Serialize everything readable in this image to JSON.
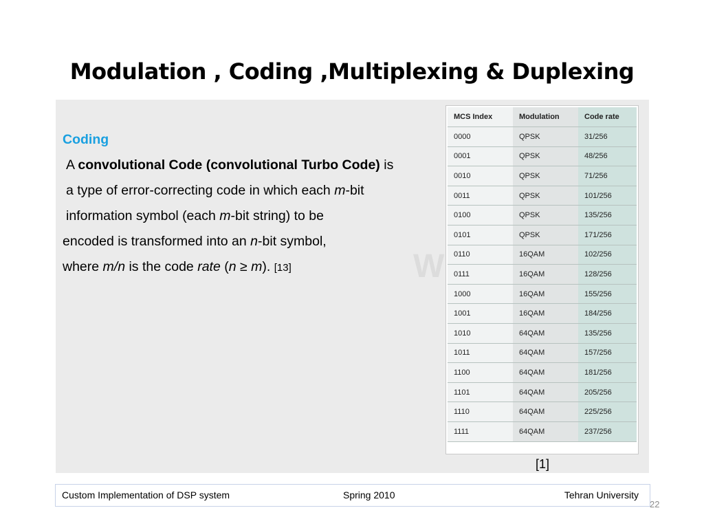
{
  "slide": {
    "title": "Modulation , Coding ,Multiplexing & Duplexing",
    "page_number": "22",
    "citation": "[1]"
  },
  "body": {
    "heading": "Coding",
    "line1_a": "A ",
    "line1_bold": "convolutional Code (convolutional Turbo Code)",
    "line1_b": " is",
    "line2_a": "a type of error-correcting code in which each ",
    "line2_m": "m",
    "line2_b": "-bit",
    "line3_a": "information symbol (each ",
    "line3_m": "m",
    "line3_b": "-bit string) to be",
    "line4_a": "encoded is transformed into an ",
    "line4_n": "n",
    "line4_b": "-bit symbol,",
    "line5_a": "where ",
    "line5_mn": "m/n",
    "line5_b": " is the code ",
    "line5_rate": "rate",
    "line5_c": " (",
    "line5_ngm": "n ≥ m",
    "line5_d": "). ",
    "line5_ref": "[13]"
  },
  "table": {
    "headers": [
      "MCS Index",
      "Modulation",
      "Code rate"
    ],
    "rows": [
      [
        "0000",
        "QPSK",
        "31/256"
      ],
      [
        "0001",
        "QPSK",
        "48/256"
      ],
      [
        "0010",
        "QPSK",
        "71/256"
      ],
      [
        "0011",
        "QPSK",
        "101/256"
      ],
      [
        "0100",
        "QPSK",
        "135/256"
      ],
      [
        "0101",
        "QPSK",
        "171/256"
      ],
      [
        "0110",
        "16QAM",
        "102/256"
      ],
      [
        "0111",
        "16QAM",
        "128/256"
      ],
      [
        "1000",
        "16QAM",
        "155/256"
      ],
      [
        "1001",
        "16QAM",
        "184/256"
      ],
      [
        "1010",
        "64QAM",
        "135/256"
      ],
      [
        "1011",
        "64QAM",
        "157/256"
      ],
      [
        "1100",
        "64QAM",
        "181/256"
      ],
      [
        "1101",
        "64QAM",
        "205/256"
      ],
      [
        "1110",
        "64QAM",
        "225/256"
      ],
      [
        "1111",
        "64QAM",
        "237/256"
      ]
    ]
  },
  "footer": {
    "left": "Custom Implementation of DSP system",
    "center": "Spring 2010",
    "right": "Tehran University"
  },
  "colors": {
    "heading": "#1aa0e0",
    "content_bg": "#ebebeb",
    "code_rate_column": "#cfe2de"
  }
}
